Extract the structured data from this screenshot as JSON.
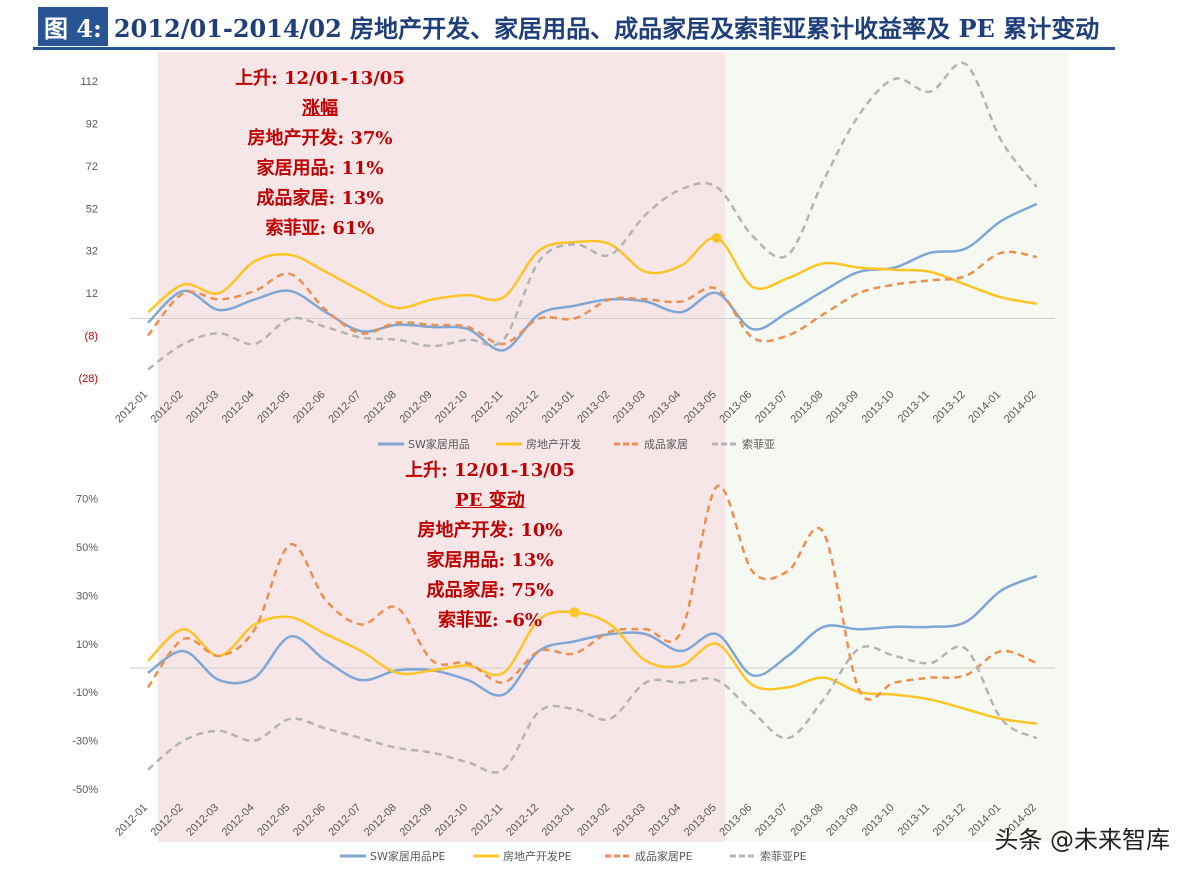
{
  "title": {
    "tag": "图 4:",
    "text": "2012/01-2014/02 房地产开发、家居用品、成品家居及索菲亚累计收益率及 PE 累计变动"
  },
  "watermark": "头条 @未来智库",
  "annotations": [
    {
      "lines": [
        "上升: 12/01-13/05",
        "涨幅",
        "房地产开发: 37%",
        "家居用品: 11%",
        "成品家居: 13%",
        "索菲亚: 61%"
      ]
    },
    {
      "lines": [
        "上升: 12/01-13/05",
        "PE 变动",
        "房地产开发: 10%",
        "家居用品: 13%",
        "成品家居: 75%",
        "索菲亚: -6%"
      ]
    }
  ],
  "colors": {
    "sw": "#7ea6d6",
    "dev": "#ffc425",
    "furn": "#ec8f4f",
    "sofia": "#b4b4b4",
    "rise_bg": "#f6e6e8",
    "after_bg": "#f6f9f1"
  },
  "chart_data": [
    {
      "type": "line",
      "title": "累计收益率",
      "ylim": [
        -28,
        120
      ],
      "yticks": [
        "112",
        "92",
        "72",
        "52",
        "32",
        "12",
        "(8)",
        "(28)"
      ],
      "ytick_values": [
        112,
        92,
        72,
        52,
        32,
        12,
        -8,
        -28
      ],
      "categories": [
        "2012-01",
        "2012-02",
        "2012-03",
        "2012-04",
        "2012-05",
        "2012-06",
        "2012-07",
        "2012-08",
        "2012-09",
        "2012-10",
        "2012-11",
        "2012-12",
        "2013-01",
        "2013-02",
        "2013-03",
        "2013-04",
        "2013-05",
        "2013-06",
        "2013-07",
        "2013-08",
        "2013-09",
        "2013-10",
        "2013-11",
        "2013-12",
        "2014-01",
        "2014-02"
      ],
      "series": [
        {
          "name": "SW家居用品",
          "key": "sw",
          "dash": false,
          "values": [
            -2,
            13,
            4,
            9,
            13,
            3,
            -6,
            -3,
            -4,
            -5,
            -15,
            2,
            6,
            9,
            8,
            3,
            12,
            -5,
            3,
            13,
            22,
            24,
            31,
            33,
            46,
            54
          ]
        },
        {
          "name": "房地产开发",
          "key": "dev",
          "dash": false,
          "values": [
            3,
            16,
            12,
            27,
            30,
            22,
            13,
            5,
            9,
            11,
            10,
            32,
            36,
            35,
            22,
            25,
            38,
            15,
            19,
            26,
            24,
            23,
            22,
            16,
            10,
            7
          ],
          "marker_index": 16
        },
        {
          "name": "成品家居",
          "key": "furn",
          "dash": true,
          "values": [
            -8,
            12,
            9,
            13,
            21,
            4,
            -7,
            -2,
            -3,
            -4,
            -12,
            0,
            0,
            9,
            9,
            8,
            14,
            -9,
            -8,
            2,
            12,
            16,
            18,
            20,
            31,
            29
          ]
        },
        {
          "name": "索菲亚",
          "key": "sofia",
          "dash": true,
          "values": [
            -24,
            -12,
            -7,
            -12,
            0,
            -4,
            -9,
            -10,
            -13,
            -10,
            -10,
            27,
            35,
            30,
            49,
            61,
            62,
            39,
            30,
            65,
            96,
            113,
            107,
            120,
            84,
            62
          ]
        }
      ]
    },
    {
      "type": "line",
      "title": "PE 累计变动",
      "ylim": [
        -50,
        75
      ],
      "yticks": [
        "70%",
        "50%",
        "30%",
        "10%",
        "-10%",
        "-30%",
        "-50%"
      ],
      "ytick_values": [
        70,
        50,
        30,
        10,
        -10,
        -30,
        -50
      ],
      "categories": [
        "2012-01",
        "2012-02",
        "2012-03",
        "2012-04",
        "2012-05",
        "2012-06",
        "2012-07",
        "2012-08",
        "2012-09",
        "2012-10",
        "2012-11",
        "2012-12",
        "2013-01",
        "2013-02",
        "2013-03",
        "2013-04",
        "2013-05",
        "2013-06",
        "2013-07",
        "2013-08",
        "2013-09",
        "2013-10",
        "2013-11",
        "2013-12",
        "2014-01",
        "2014-02"
      ],
      "series": [
        {
          "name": "SW家居用品PE",
          "key": "sw",
          "dash": false,
          "values": [
            -2,
            7,
            -5,
            -4,
            13,
            3,
            -5,
            -1,
            -1,
            -5,
            -11,
            7,
            11,
            14,
            14,
            7,
            14,
            -3,
            5,
            17,
            16,
            17,
            17,
            19,
            32,
            38
          ]
        },
        {
          "name": "房地产开发PE",
          "key": "dev",
          "dash": false,
          "values": [
            3,
            16,
            5,
            18,
            21,
            14,
            7,
            -2,
            -1,
            1,
            -2,
            20,
            23,
            18,
            3,
            1,
            10,
            -7,
            -8,
            -4,
            -10,
            -11,
            -13,
            -17,
            -21,
            -23
          ],
          "marker_index": 12
        },
        {
          "name": "成品家居PE",
          "key": "furn",
          "dash": true,
          "values": [
            -8,
            12,
            5,
            16,
            51,
            28,
            18,
            25,
            3,
            2,
            -6,
            7,
            6,
            15,
            16,
            15,
            75,
            40,
            40,
            56,
            -9,
            -6,
            -4,
            -3,
            7,
            2
          ]
        },
        {
          "name": "索菲亚PE",
          "key": "sofia",
          "dash": true,
          "values": [
            -42,
            -30,
            -26,
            -30,
            -21,
            -25,
            -29,
            -33,
            -35,
            -39,
            -42,
            -18,
            -17,
            -21,
            -6,
            -6,
            -5,
            -18,
            -29,
            -13,
            8,
            5,
            2,
            8,
            -21,
            -29
          ]
        }
      ]
    }
  ]
}
